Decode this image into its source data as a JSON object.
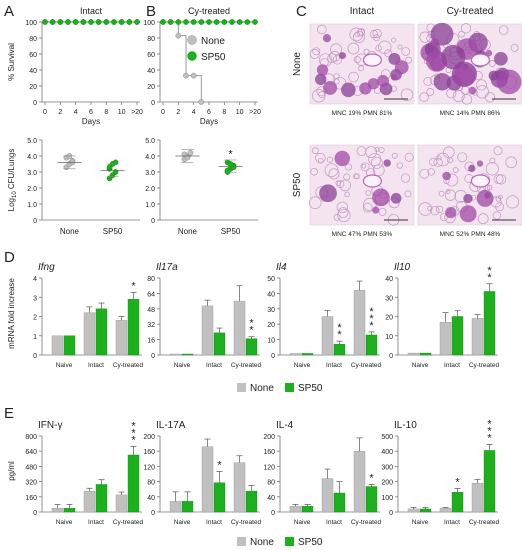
{
  "colors": {
    "none": "#c0c0c0",
    "sp50": "#1fae1f",
    "axis": "#777777",
    "text": "#222222"
  },
  "panels": {
    "A": "A",
    "B": "B",
    "C": "C",
    "D": "D",
    "E": "E"
  },
  "survival": {
    "ylabel": "% Survival",
    "xlabel": "Days",
    "xticks": [
      "0",
      "2",
      "4",
      "6",
      "8",
      "10",
      ">20"
    ],
    "yticks": [
      "0",
      "20",
      "40",
      "60",
      "80",
      "100"
    ],
    "legend": [
      "None",
      "SP50"
    ],
    "panels": [
      {
        "title": "Intact",
        "series": [
          {
            "name": "None",
            "x": [
              0,
              1,
              2,
              3,
              4,
              5,
              6,
              7,
              8,
              9,
              10,
              11,
              12
            ],
            "y": [
              100,
              100,
              100,
              100,
              100,
              100,
              100,
              100,
              100,
              100,
              100,
              100,
              100
            ]
          },
          {
            "name": "SP50",
            "x": [
              0,
              1,
              2,
              3,
              4,
              5,
              6,
              7,
              8,
              9,
              10,
              11,
              12
            ],
            "y": [
              100,
              100,
              100,
              100,
              100,
              100,
              100,
              100,
              100,
              100,
              100,
              100,
              100
            ]
          }
        ]
      },
      {
        "title": "Cy-treated",
        "series": [
          {
            "name": "None",
            "x": [
              0,
              1,
              2,
              3,
              4,
              5
            ],
            "y": [
              100,
              100,
              83,
              33,
              33,
              0
            ]
          },
          {
            "name": "SP50",
            "x": [
              0,
              1,
              2,
              3,
              4,
              5,
              6,
              7,
              8,
              9,
              10,
              11,
              12
            ],
            "y": [
              100,
              100,
              100,
              100,
              100,
              100,
              100,
              100,
              100,
              100,
              100,
              100,
              100
            ]
          }
        ]
      }
    ]
  },
  "cfu": {
    "ylabel_main": "Log",
    "ylabel_sub": "10",
    "ylabel_rest": " CFU/Lungs",
    "yticks": [
      "0",
      "1.0",
      "2.0",
      "3.0",
      "4.0",
      "5.0"
    ],
    "groups": [
      "None",
      "SP50"
    ],
    "panels": [
      {
        "points": [
          [
            3.3,
            3.5,
            3.7,
            3.9,
            4.0,
            3.6
          ],
          [
            2.6,
            2.8,
            3.0,
            3.2,
            3.5,
            3.6,
            3.3
          ]
        ],
        "means": [
          3.6,
          3.1
        ],
        "sig": [
          "",
          ""
        ]
      },
      {
        "points": [
          [
            3.8,
            4.0,
            4.2,
            4.1,
            3.9
          ],
          [
            3.0,
            3.2,
            3.4,
            3.6,
            3.5,
            3.3,
            3.1
          ]
        ],
        "means": [
          4.0,
          3.35
        ],
        "sig": [
          "",
          "*"
        ]
      }
    ]
  },
  "histology": {
    "col_titles": [
      "Intact",
      "Cy-treated"
    ],
    "row_titles": [
      "None",
      "SP50"
    ],
    "captions": [
      "MNC 19% PMN 81%",
      "MNC 14% PMN 86%",
      "MNC 47% PMN 53%",
      "MNC 52% PMN 48%"
    ]
  },
  "mrna": {
    "ylabel": "mRNA fold increase",
    "categories": [
      "Naive",
      "Intact",
      "Cy-treated"
    ],
    "legend": [
      "None",
      "SP50"
    ],
    "panels": [
      {
        "title": "Ifng",
        "yticks": [
          "0",
          "1",
          "2",
          "3",
          "4"
        ],
        "ymax": 4,
        "series": [
          {
            "name": "None",
            "values": [
              1,
              2.2,
              1.8
            ],
            "err": [
              0,
              0.3,
              0.2
            ]
          },
          {
            "name": "SP50",
            "values": [
              1,
              2.4,
              2.9
            ],
            "err": [
              0,
              0.3,
              0.35
            ]
          }
        ],
        "sig": [
          "",
          "",
          "*"
        ]
      },
      {
        "title": "Il17a",
        "yticks": [
          "0",
          "16",
          "32",
          "48",
          "64",
          "80"
        ],
        "ymax": 80,
        "series": [
          {
            "name": "None",
            "values": [
              1,
              51,
              56
            ],
            "err": [
              0,
              6,
              16
            ]
          },
          {
            "name": "SP50",
            "values": [
              1,
              23,
              17
            ],
            "err": [
              0,
              5,
              2
            ]
          }
        ],
        "sig": [
          "",
          "",
          "**"
        ]
      },
      {
        "title": "Il4",
        "yticks": [
          "0",
          "10",
          "20",
          "30",
          "40",
          "50"
        ],
        "ymax": 50,
        "series": [
          {
            "name": "None",
            "values": [
              1,
              25,
              42
            ],
            "err": [
              0,
              4,
              6
            ]
          },
          {
            "name": "SP50",
            "values": [
              1,
              7,
              13
            ],
            "err": [
              0,
              2,
              2
            ]
          }
        ],
        "sig": [
          "",
          "**",
          "***"
        ]
      },
      {
        "title": "Il10",
        "yticks": [
          "0",
          "10",
          "20",
          "30",
          "40"
        ],
        "ymax": 40,
        "series": [
          {
            "name": "None",
            "values": [
              1,
              17,
              19
            ],
            "err": [
              0,
              5,
              2
            ]
          },
          {
            "name": "SP50",
            "values": [
              1,
              20,
              33
            ],
            "err": [
              0,
              3,
              4
            ]
          }
        ],
        "sig": [
          "",
          "",
          "**"
        ]
      }
    ]
  },
  "protein": {
    "ylabel": "pg/ml",
    "categories": [
      "Naive",
      "Intact",
      "Cy-treated"
    ],
    "legend": [
      "None",
      "SP50"
    ],
    "panels": [
      {
        "title": "IFN-γ",
        "yticks": [
          "0",
          "160",
          "320",
          "480",
          "640",
          "800"
        ],
        "ymax": 800,
        "series": [
          {
            "name": "None",
            "values": [
              40,
              220,
              180
            ],
            "err": [
              40,
              30,
              30
            ]
          },
          {
            "name": "SP50",
            "values": [
              40,
              290,
              600
            ],
            "err": [
              40,
              50,
              90
            ]
          }
        ],
        "sig": [
          "",
          "",
          "***"
        ]
      },
      {
        "title": "IL-17A",
        "yticks": [
          "0",
          "40",
          "80",
          "120",
          "160",
          "200"
        ],
        "ymax": 200,
        "series": [
          {
            "name": "None",
            "values": [
              28,
              172,
              130
            ],
            "err": [
              25,
              20,
              18
            ]
          },
          {
            "name": "SP50",
            "values": [
              28,
              77,
              55
            ],
            "err": [
              25,
              30,
              15
            ]
          }
        ],
        "sig": [
          "",
          "*",
          ""
        ]
      },
      {
        "title": "IL-4",
        "yticks": [
          "0",
          "40",
          "80",
          "120",
          "160",
          "200"
        ],
        "ymax": 200,
        "series": [
          {
            "name": "None",
            "values": [
              15,
              88,
              160
            ],
            "err": [
              5,
              25,
              35
            ]
          },
          {
            "name": "SP50",
            "values": [
              15,
              50,
              67
            ],
            "err": [
              5,
              30,
              5
            ]
          }
        ],
        "sig": [
          "",
          "",
          "*"
        ]
      },
      {
        "title": "IL-10",
        "yticks": [
          "0",
          "100",
          "200",
          "300",
          "400",
          "500"
        ],
        "ymax": 500,
        "series": [
          {
            "name": "None",
            "values": [
              20,
              25,
              190
            ],
            "err": [
              10,
              5,
              25
            ]
          },
          {
            "name": "SP50",
            "values": [
              20,
              130,
              405
            ],
            "err": [
              10,
              25,
              40
            ]
          }
        ],
        "sig": [
          "",
          "*",
          "***"
        ]
      }
    ]
  },
  "chart_data": [
    {
      "type": "line",
      "title": "Intact",
      "xlabel": "Days",
      "ylabel": "% Survival",
      "ylim": [
        0,
        100
      ],
      "x": [
        0,
        2,
        4,
        6,
        8,
        10,
        ">20"
      ],
      "series": [
        {
          "name": "None",
          "values": [
            100,
            100,
            100,
            100,
            100,
            100,
            100
          ]
        },
        {
          "name": "SP50",
          "values": [
            100,
            100,
            100,
            100,
            100,
            100,
            100
          ]
        }
      ]
    },
    {
      "type": "line",
      "title": "Cy-treated",
      "xlabel": "Days",
      "ylabel": "% Survival",
      "ylim": [
        0,
        100
      ],
      "x": [
        0,
        1,
        2,
        3,
        4,
        5,
        ">20"
      ],
      "series": [
        {
          "name": "None",
          "values": [
            100,
            100,
            83,
            33,
            33,
            0,
            0
          ]
        },
        {
          "name": "SP50",
          "values": [
            100,
            100,
            100,
            100,
            100,
            100,
            100
          ]
        }
      ]
    },
    {
      "type": "scatter",
      "ylabel": "Log10 CFU/Lungs",
      "categories": [
        "None",
        "SP50"
      ],
      "series": [
        {
          "name": "None",
          "values": [
            3.3,
            3.5,
            3.7,
            3.9,
            4.0,
            3.6
          ]
        },
        {
          "name": "SP50",
          "values": [
            2.6,
            2.8,
            3.0,
            3.2,
            3.5,
            3.6,
            3.3
          ]
        }
      ]
    },
    {
      "type": "scatter",
      "ylabel": "Log10 CFU/Lungs",
      "categories": [
        "None",
        "SP50"
      ],
      "series": [
        {
          "name": "None",
          "values": [
            3.8,
            4.0,
            4.2,
            4.1,
            3.9
          ]
        },
        {
          "name": "SP50",
          "values": [
            3.0,
            3.2,
            3.4,
            3.6,
            3.5,
            3.3,
            3.1
          ]
        }
      ]
    },
    {
      "type": "bar",
      "title": "Ifng",
      "ylabel": "mRNA fold increase",
      "categories": [
        "Naive",
        "Intact",
        "Cy-treated"
      ],
      "series": [
        {
          "name": "None",
          "values": [
            1,
            2.2,
            1.8
          ]
        },
        {
          "name": "SP50",
          "values": [
            1,
            2.4,
            2.9
          ]
        }
      ]
    },
    {
      "type": "bar",
      "title": "Il17a",
      "categories": [
        "Naive",
        "Intact",
        "Cy-treated"
      ],
      "series": [
        {
          "name": "None",
          "values": [
            1,
            51,
            56
          ]
        },
        {
          "name": "SP50",
          "values": [
            1,
            23,
            17
          ]
        }
      ]
    },
    {
      "type": "bar",
      "title": "Il4",
      "categories": [
        "Naive",
        "Intact",
        "Cy-treated"
      ],
      "series": [
        {
          "name": "None",
          "values": [
            1,
            25,
            42
          ]
        },
        {
          "name": "SP50",
          "values": [
            1,
            7,
            13
          ]
        }
      ]
    },
    {
      "type": "bar",
      "title": "Il10",
      "categories": [
        "Naive",
        "Intact",
        "Cy-treated"
      ],
      "series": [
        {
          "name": "None",
          "values": [
            1,
            17,
            19
          ]
        },
        {
          "name": "SP50",
          "values": [
            1,
            20,
            33
          ]
        }
      ]
    },
    {
      "type": "bar",
      "title": "IFN-γ",
      "ylabel": "pg/ml",
      "categories": [
        "Naive",
        "Intact",
        "Cy-treated"
      ],
      "series": [
        {
          "name": "None",
          "values": [
            40,
            220,
            180
          ]
        },
        {
          "name": "SP50",
          "values": [
            40,
            290,
            600
          ]
        }
      ]
    },
    {
      "type": "bar",
      "title": "IL-17A",
      "categories": [
        "Naive",
        "Intact",
        "Cy-treated"
      ],
      "series": [
        {
          "name": "None",
          "values": [
            28,
            172,
            130
          ]
        },
        {
          "name": "SP50",
          "values": [
            28,
            77,
            55
          ]
        }
      ]
    },
    {
      "type": "bar",
      "title": "IL-4",
      "categories": [
        "Naive",
        "Intact",
        "Cy-treated"
      ],
      "series": [
        {
          "name": "None",
          "values": [
            15,
            88,
            160
          ]
        },
        {
          "name": "SP50",
          "values": [
            15,
            50,
            67
          ]
        }
      ]
    },
    {
      "type": "bar",
      "title": "IL-10",
      "categories": [
        "Naive",
        "Intact",
        "Cy-treated"
      ],
      "series": [
        {
          "name": "None",
          "values": [
            20,
            25,
            190
          ]
        },
        {
          "name": "SP50",
          "values": [
            20,
            130,
            405
          ]
        }
      ]
    }
  ]
}
